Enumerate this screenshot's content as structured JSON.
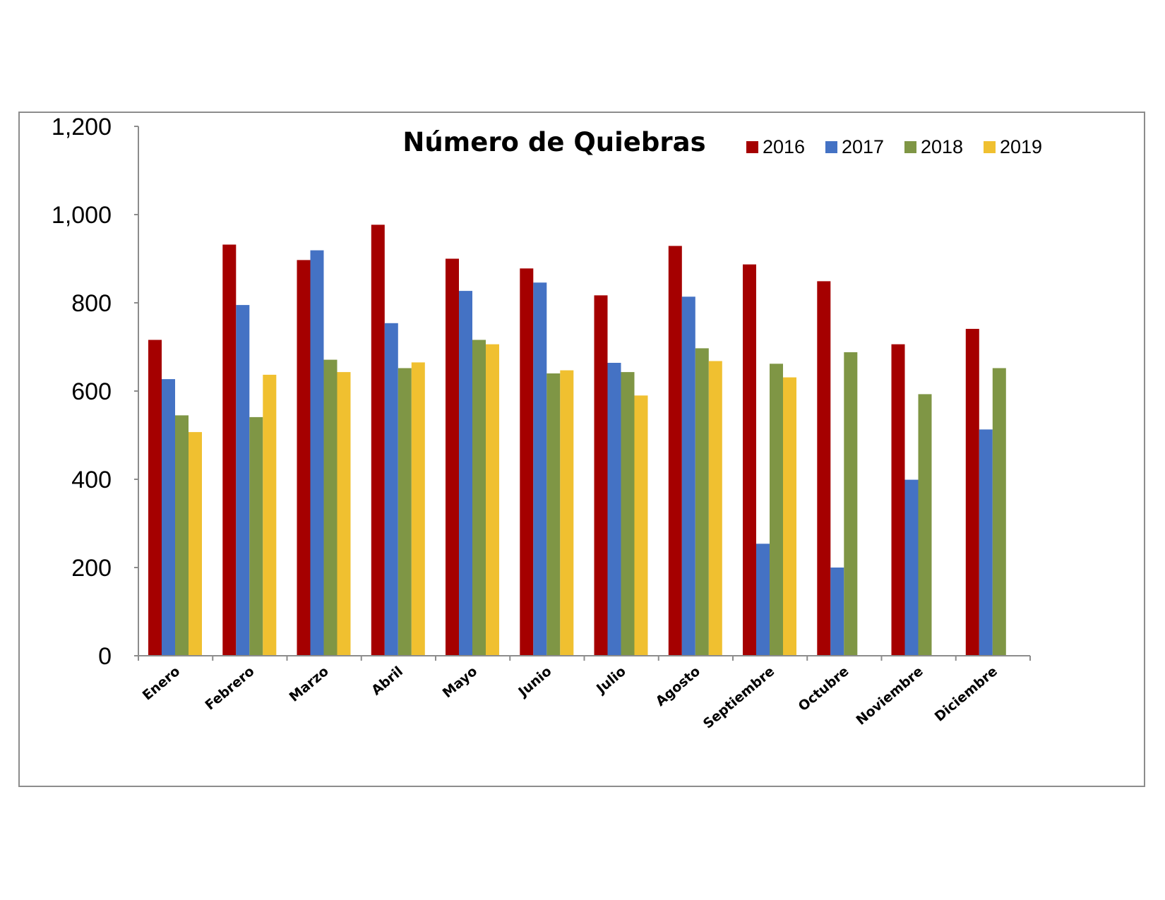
{
  "chart_data": {
    "type": "bar",
    "title": "Número de Quiebras",
    "xlabel": "",
    "ylabel": "",
    "ylim": [
      0,
      1200
    ],
    "yticks": [
      "0",
      "200",
      "400",
      "600",
      "800",
      "1,000",
      "1,200"
    ],
    "ytick_values": [
      0,
      200,
      400,
      600,
      800,
      1000,
      1200
    ],
    "grid": false,
    "legend_position": "top-right",
    "categories": [
      "Enero",
      "Febrero",
      "Marzo",
      "Abril",
      "Mayo",
      "Junio",
      "Julio",
      "Agosto",
      "Septiembre",
      "Octubre",
      "Noviembre",
      "Diciembre"
    ],
    "series": [
      {
        "name": "2016",
        "color": "#a50000",
        "values": [
          716,
          932,
          897,
          977,
          900,
          878,
          817,
          929,
          887,
          849,
          706,
          741
        ]
      },
      {
        "name": "2017",
        "color": "#4472c4",
        "values": [
          627,
          795,
          919,
          754,
          827,
          846,
          664,
          814,
          254,
          200,
          399,
          513
        ]
      },
      {
        "name": "2018",
        "color": "#7f9645",
        "values": [
          545,
          541,
          671,
          652,
          716,
          640,
          643,
          697,
          662,
          688,
          593,
          652
        ]
      },
      {
        "name": "2019",
        "color": "#f0c030",
        "values": [
          507,
          637,
          643,
          665,
          706,
          647,
          590,
          668,
          631,
          null,
          null,
          null
        ]
      }
    ]
  }
}
